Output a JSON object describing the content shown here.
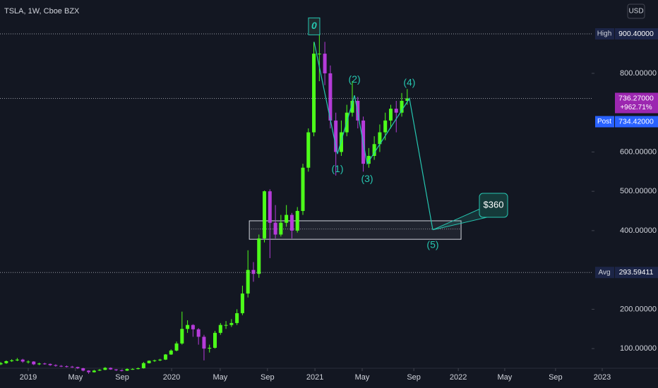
{
  "header": {
    "symbol": "TSLA, 1W, Cboe BZX",
    "currency": "USD"
  },
  "chart_data": {
    "type": "candlestick",
    "up_color": "#4dff1a",
    "down_color": "#b53bd9",
    "xlim": [
      -10.28,
      215.94
    ],
    "ylim": [
      50,
      986.5
    ],
    "xticks": [
      {
        "value": 0,
        "label": "2019"
      },
      {
        "value": 17.2,
        "label": "May"
      },
      {
        "value": 34.2,
        "label": "Sep"
      },
      {
        "value": 52.2,
        "label": "2020"
      },
      {
        "value": 69.9,
        "label": "May"
      },
      {
        "value": 87.1,
        "label": "Sep"
      },
      {
        "value": 104.4,
        "label": "2021"
      },
      {
        "value": 121.6,
        "label": "May"
      },
      {
        "value": 140.4,
        "label": "Sep"
      },
      {
        "value": 156.6,
        "label": "2022"
      },
      {
        "value": 173.5,
        "label": "May"
      },
      {
        "value": 192,
        "label": "Sep"
      },
      {
        "value": 209,
        "label": "2023"
      }
    ],
    "yticks": [
      {
        "value": 100,
        "label": "100.00000"
      },
      {
        "value": 200,
        "label": "200.00000"
      },
      {
        "value": 400,
        "label": "400.00000"
      },
      {
        "value": 500,
        "label": "500.00000"
      },
      {
        "value": 600,
        "label": "600.00000"
      },
      {
        "value": 800,
        "label": "800.00000"
      }
    ],
    "x": [
      -10,
      -8,
      -6,
      -4,
      -2,
      0,
      2,
      4,
      6,
      8,
      10,
      12,
      14,
      16,
      18,
      20,
      22,
      24,
      26,
      28,
      30,
      32,
      34,
      36,
      38,
      40,
      42,
      44,
      46,
      48,
      50,
      52,
      54,
      56,
      58,
      60,
      62,
      64,
      66,
      68,
      70,
      72,
      74,
      76,
      78,
      80,
      82,
      84,
      86,
      88,
      90,
      92,
      94,
      96,
      98,
      100,
      102,
      104,
      106,
      108,
      110,
      112,
      114,
      116,
      118,
      120,
      122,
      124,
      126,
      128,
      130,
      132,
      134,
      136,
      138
    ],
    "ohlc": [
      [
        60,
        66,
        58,
        63
      ],
      [
        63,
        70,
        61,
        68
      ],
      [
        68,
        73,
        66,
        70
      ],
      [
        70,
        76,
        68,
        72
      ],
      [
        72,
        74,
        64,
        67
      ],
      [
        67,
        70,
        62,
        67
      ],
      [
        67,
        68,
        58,
        60
      ],
      [
        60,
        64,
        58,
        62
      ],
      [
        62,
        64,
        59,
        61
      ],
      [
        61,
        62,
        56,
        58
      ],
      [
        58,
        60,
        54,
        56
      ],
      [
        56,
        58,
        53,
        55
      ],
      [
        55,
        57,
        52,
        54
      ],
      [
        54,
        56,
        51,
        53
      ],
      [
        53,
        54,
        48,
        50
      ],
      [
        50,
        51,
        42,
        44
      ],
      [
        44,
        45,
        36,
        40
      ],
      [
        40,
        46,
        39,
        44
      ],
      [
        44,
        48,
        43,
        46
      ],
      [
        46,
        53,
        45,
        51
      ],
      [
        51,
        52,
        46,
        47
      ],
      [
        47,
        48,
        43,
        45
      ],
      [
        45,
        46,
        42,
        44
      ],
      [
        44,
        50,
        43,
        48
      ],
      [
        48,
        50,
        46,
        48
      ],
      [
        48,
        52,
        47,
        50
      ],
      [
        50,
        66,
        49,
        63
      ],
      [
        63,
        70,
        62,
        69
      ],
      [
        69,
        72,
        66,
        70
      ],
      [
        70,
        74,
        68,
        72
      ],
      [
        72,
        86,
        71,
        85
      ],
      [
        85,
        98,
        84,
        95
      ],
      [
        95,
        118,
        93,
        113
      ],
      [
        113,
        194,
        110,
        150
      ],
      [
        150,
        172,
        140,
        160
      ],
      [
        160,
        162,
        130,
        149
      ],
      [
        149,
        152,
        110,
        130
      ],
      [
        130,
        135,
        70,
        100
      ],
      [
        100,
        110,
        90,
        102
      ],
      [
        102,
        145,
        100,
        140
      ],
      [
        140,
        165,
        135,
        160
      ],
      [
        160,
        170,
        150,
        160
      ],
      [
        160,
        175,
        155,
        165
      ],
      [
        165,
        200,
        160,
        190
      ],
      [
        190,
        260,
        185,
        240
      ],
      [
        240,
        350,
        230,
        300
      ],
      [
        300,
        320,
        270,
        290
      ],
      [
        290,
        390,
        280,
        380
      ],
      [
        380,
        502,
        370,
        500
      ],
      [
        500,
        505,
        330,
        420
      ],
      [
        420,
        465,
        380,
        390
      ],
      [
        390,
        440,
        385,
        420
      ],
      [
        420,
        465,
        410,
        440
      ],
      [
        440,
        445,
        380,
        400
      ],
      [
        400,
        460,
        395,
        450
      ],
      [
        450,
        570,
        440,
        560
      ],
      [
        560,
        660,
        550,
        650
      ],
      [
        650,
        880,
        640,
        850
      ],
      [
        850,
        900.4,
        780,
        850
      ],
      [
        850,
        880,
        770,
        800
      ],
      [
        800,
        820,
        660,
        680
      ],
      [
        680,
        700,
        540,
        600
      ],
      [
        600,
        680,
        590,
        650
      ],
      [
        650,
        720,
        640,
        700
      ],
      [
        700,
        780,
        690,
        730
      ],
      [
        730,
        740,
        660,
        680
      ],
      [
        680,
        690,
        550,
        570
      ],
      [
        570,
        610,
        560,
        590
      ],
      [
        590,
        640,
        580,
        620
      ],
      [
        620,
        670,
        600,
        650
      ],
      [
        650,
        700,
        630,
        680
      ],
      [
        680,
        720,
        660,
        710
      ],
      [
        710,
        730,
        650,
        700
      ],
      [
        700,
        750,
        690,
        730
      ],
      [
        730,
        760,
        720,
        736.27
      ]
    ],
    "price_labels": [
      {
        "tag": "High",
        "value": 900.4,
        "label": "900.40000"
      },
      {
        "value": 736.27,
        "label": "736.27000",
        "change": 962.71,
        "change_label": "+962.71%"
      },
      {
        "tag": "Post",
        "value": 734.42,
        "label": "734.42000"
      },
      {
        "tag": "Avg",
        "value": 293.59411,
        "label": "293.59411"
      }
    ],
    "wave": {
      "labels": [
        "0",
        "(1)",
        "(2)",
        "(3)",
        "(4)",
        "(5)"
      ],
      "x": [
        104.1,
        112.6,
        118.8,
        123.4,
        138.8,
        147.3
      ],
      "values": [
        880,
        595,
        744,
        570,
        736,
        402
      ]
    },
    "zone": {
      "x": [
        80.5,
        157.6
      ],
      "y": [
        378,
        425
      ],
      "mid": 404
    },
    "callout": "$360"
  }
}
